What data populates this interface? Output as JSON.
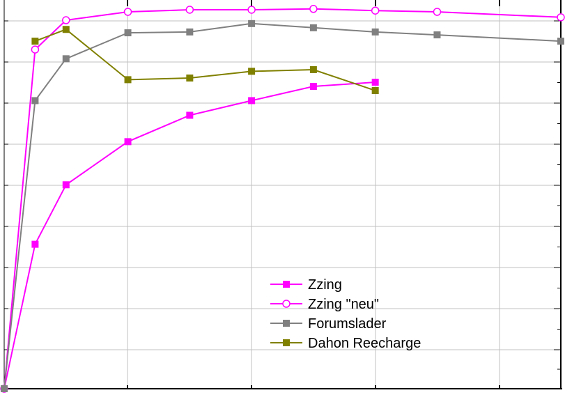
{
  "chart_data": {
    "type": "line",
    "x_range": [
      0,
      45
    ],
    "y_range": [
      0,
      9
    ],
    "grid": true,
    "legend_position": "bottom-right (inside plot)",
    "series": [
      {
        "name": "Zzing",
        "color": "#ff00ff",
        "marker": "filled-square",
        "x": [
          0,
          2.5,
          5,
          10,
          15,
          20,
          25,
          30
        ],
        "y": [
          0,
          3.45,
          4.87,
          5.9,
          6.53,
          6.88,
          7.22,
          7.32
        ]
      },
      {
        "name": "Zzing \"neu\"",
        "color": "#ff00ff",
        "marker": "open-circle",
        "x": [
          0,
          2.5,
          5,
          10,
          15,
          20,
          25,
          30,
          35,
          45
        ],
        "y": [
          0,
          8.1,
          8.8,
          9.0,
          9.05,
          9.05,
          9.07,
          9.03,
          9.0,
          8.87
        ]
      },
      {
        "name": "Forumslader",
        "color": "#808080",
        "marker": "filled-square",
        "x": [
          0,
          2.5,
          5,
          10,
          15,
          20,
          25,
          30,
          35,
          45
        ],
        "y": [
          0,
          6.88,
          7.88,
          8.5,
          8.52,
          8.72,
          8.62,
          8.52,
          8.45,
          8.3
        ]
      },
      {
        "name": "Dahon Reecharge",
        "color": "#808000",
        "marker": "filled-square",
        "x": [
          2.5,
          5,
          10,
          15,
          20,
          25,
          30
        ],
        "y": [
          8.3,
          8.58,
          7.38,
          7.42,
          7.58,
          7.62,
          7.12
        ]
      }
    ]
  }
}
